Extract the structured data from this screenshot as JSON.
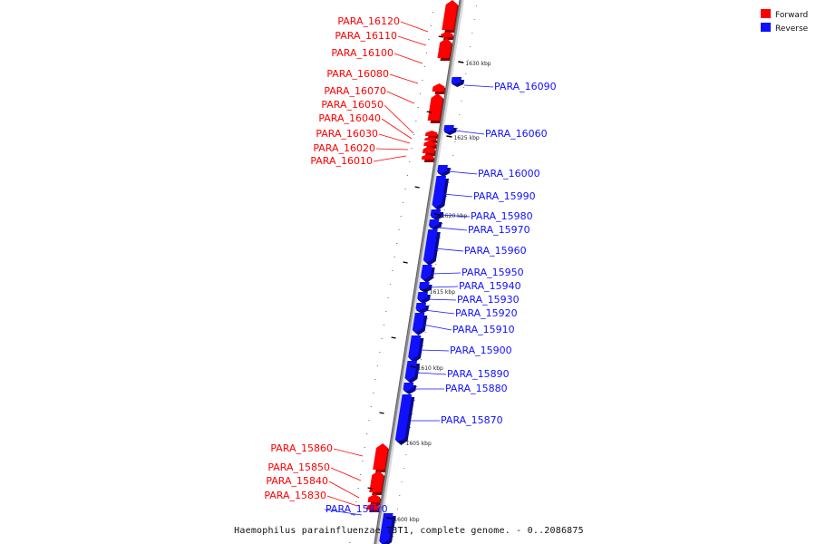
{
  "caption": "Haemophilus parainfluenzae T3T1, complete genome. - 0..2086875",
  "legend": [
    {
      "label": "Forward",
      "color": "#ff0000"
    },
    {
      "label": "Reverse",
      "color": "#1010ff"
    }
  ],
  "colors": {
    "forward": "#ff0000",
    "reverse": "#1010ff",
    "backbone": "#8c8c8c"
  },
  "scale_ticks": [
    "1630 kbp",
    "1625 kbp",
    "1620 kbp",
    "1615 kbp",
    "1610 kbp",
    "1605 kbp",
    "1600 kbp"
  ],
  "genes": [
    {
      "name": "PARA_16120",
      "strand": "forward"
    },
    {
      "name": "PARA_16110",
      "strand": "forward"
    },
    {
      "name": "PARA_16100",
      "strand": "forward"
    },
    {
      "name": "PARA_16090",
      "strand": "reverse"
    },
    {
      "name": "PARA_16080",
      "strand": "forward"
    },
    {
      "name": "PARA_16070",
      "strand": "forward"
    },
    {
      "name": "PARA_16060",
      "strand": "reverse"
    },
    {
      "name": "PARA_16050",
      "strand": "forward"
    },
    {
      "name": "PARA_16040",
      "strand": "forward"
    },
    {
      "name": "PARA_16030",
      "strand": "forward"
    },
    {
      "name": "PARA_16020",
      "strand": "forward"
    },
    {
      "name": "PARA_16010",
      "strand": "forward"
    },
    {
      "name": "PARA_16000",
      "strand": "reverse"
    },
    {
      "name": "PARA_15990",
      "strand": "reverse"
    },
    {
      "name": "PARA_15980",
      "strand": "reverse"
    },
    {
      "name": "PARA_15970",
      "strand": "reverse"
    },
    {
      "name": "PARA_15960",
      "strand": "reverse"
    },
    {
      "name": "PARA_15950",
      "strand": "reverse"
    },
    {
      "name": "PARA_15940",
      "strand": "reverse"
    },
    {
      "name": "PARA_15930",
      "strand": "reverse"
    },
    {
      "name": "PARA_15920",
      "strand": "reverse"
    },
    {
      "name": "PARA_15910",
      "strand": "reverse"
    },
    {
      "name": "PARA_15900",
      "strand": "reverse"
    },
    {
      "name": "PARA_15890",
      "strand": "reverse"
    },
    {
      "name": "PARA_15880",
      "strand": "reverse"
    },
    {
      "name": "PARA_15870",
      "strand": "reverse"
    },
    {
      "name": "PARA_15860",
      "strand": "forward"
    },
    {
      "name": "PARA_15850",
      "strand": "forward"
    },
    {
      "name": "PARA_15840",
      "strand": "forward"
    },
    {
      "name": "PARA_15830",
      "strand": "forward"
    },
    {
      "name": "PARA_15820",
      "strand": "reverse"
    }
  ]
}
